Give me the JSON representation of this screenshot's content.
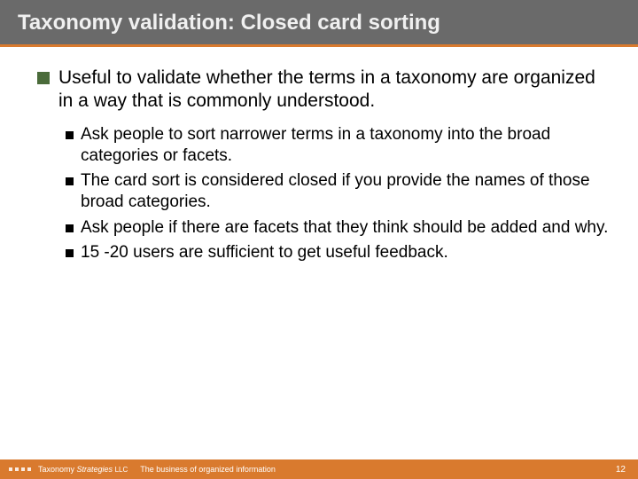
{
  "colors": {
    "title_bar_bg": "#6a6a6a",
    "title_text": "#f0f0f0",
    "accent_underline": "#d97a2e",
    "bullet_square": "#4a6b3a",
    "bullet_small": "#000000",
    "body_text": "#000000",
    "footer_bg": "#d97a2e",
    "footer_text": "#ffffff",
    "slide_bg": "#ffffff"
  },
  "typography": {
    "title_fontsize": 24,
    "level1_fontsize": 21,
    "level2_fontsize": 19,
    "footer_fontsize": 9,
    "font_family": "Verdana, Arial, sans-serif"
  },
  "title": "Taxonomy validation: Closed card sorting",
  "bullets": {
    "level1": "Useful to validate whether the terms in a taxonomy are organized in a way that is commonly understood.",
    "level2": [
      "Ask people to sort narrower terms in a taxonomy into the broad categories or facets.",
      "The card sort is considered closed if you provide the names of those broad categories.",
      "Ask people if there are facets that they think should be added and why.",
      "15 -20 users are sufficient to get useful feedback."
    ]
  },
  "footer": {
    "brand1": "Taxonomy ",
    "brand2": "Strategies ",
    "brand3": "LLC",
    "tagline": "The business of organized information",
    "page": "12"
  }
}
